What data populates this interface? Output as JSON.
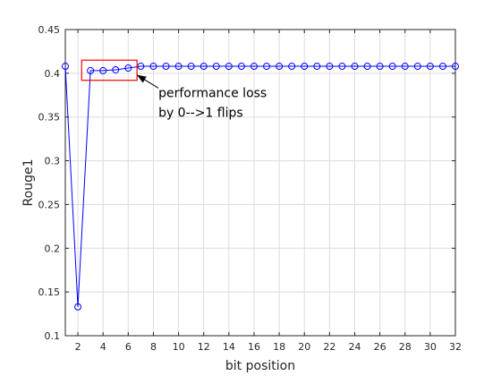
{
  "chart_data": {
    "type": "line",
    "title": "",
    "xlabel": "bit position",
    "ylabel": "Rouge1",
    "xlim": [
      1,
      32
    ],
    "ylim": [
      0.1,
      0.45
    ],
    "xticks": [
      2,
      4,
      6,
      8,
      10,
      12,
      14,
      16,
      18,
      20,
      22,
      24,
      26,
      28,
      30,
      32
    ],
    "yticks": [
      0.1,
      0.15,
      0.2,
      0.25,
      0.3,
      0.35,
      0.4,
      0.45
    ],
    "xtick_labels": [
      "2",
      "4",
      "6",
      "8",
      "10",
      "12",
      "14",
      "16",
      "18",
      "20",
      "22",
      "24",
      "26",
      "28",
      "30",
      "32"
    ],
    "ytick_labels": [
      "0.1",
      "0.15",
      "0.2",
      "0.25",
      "0.3",
      "0.35",
      "0.4",
      "0.45"
    ],
    "grid": true,
    "series": [
      {
        "color": "#0000ff",
        "marker": "circle",
        "x": [
          1,
          2,
          3,
          4,
          5,
          6,
          7,
          8,
          9,
          10,
          11,
          12,
          13,
          14,
          15,
          16,
          17,
          18,
          19,
          20,
          21,
          22,
          23,
          24,
          25,
          26,
          27,
          28,
          29,
          30,
          31,
          32
        ],
        "y": [
          0.408,
          0.133,
          0.403,
          0.403,
          0.404,
          0.406,
          0.408,
          0.408,
          0.408,
          0.408,
          0.408,
          0.408,
          0.408,
          0.408,
          0.408,
          0.408,
          0.408,
          0.408,
          0.408,
          0.408,
          0.408,
          0.408,
          0.408,
          0.408,
          0.408,
          0.408,
          0.408,
          0.408,
          0.408,
          0.408,
          0.408,
          0.408
        ]
      }
    ],
    "highlight_box": {
      "x": [
        2.3,
        6.7
      ],
      "y": [
        0.392,
        0.415
      ],
      "color": "#ff0000"
    },
    "annotation": {
      "lines": [
        "performance loss",
        "by 0-->1 flips"
      ],
      "arrow_to": [
        6.7,
        0.398
      ],
      "arrow_from": [
        8.4,
        0.383
      ],
      "text_at": [
        8.4,
        0.378
      ]
    }
  }
}
